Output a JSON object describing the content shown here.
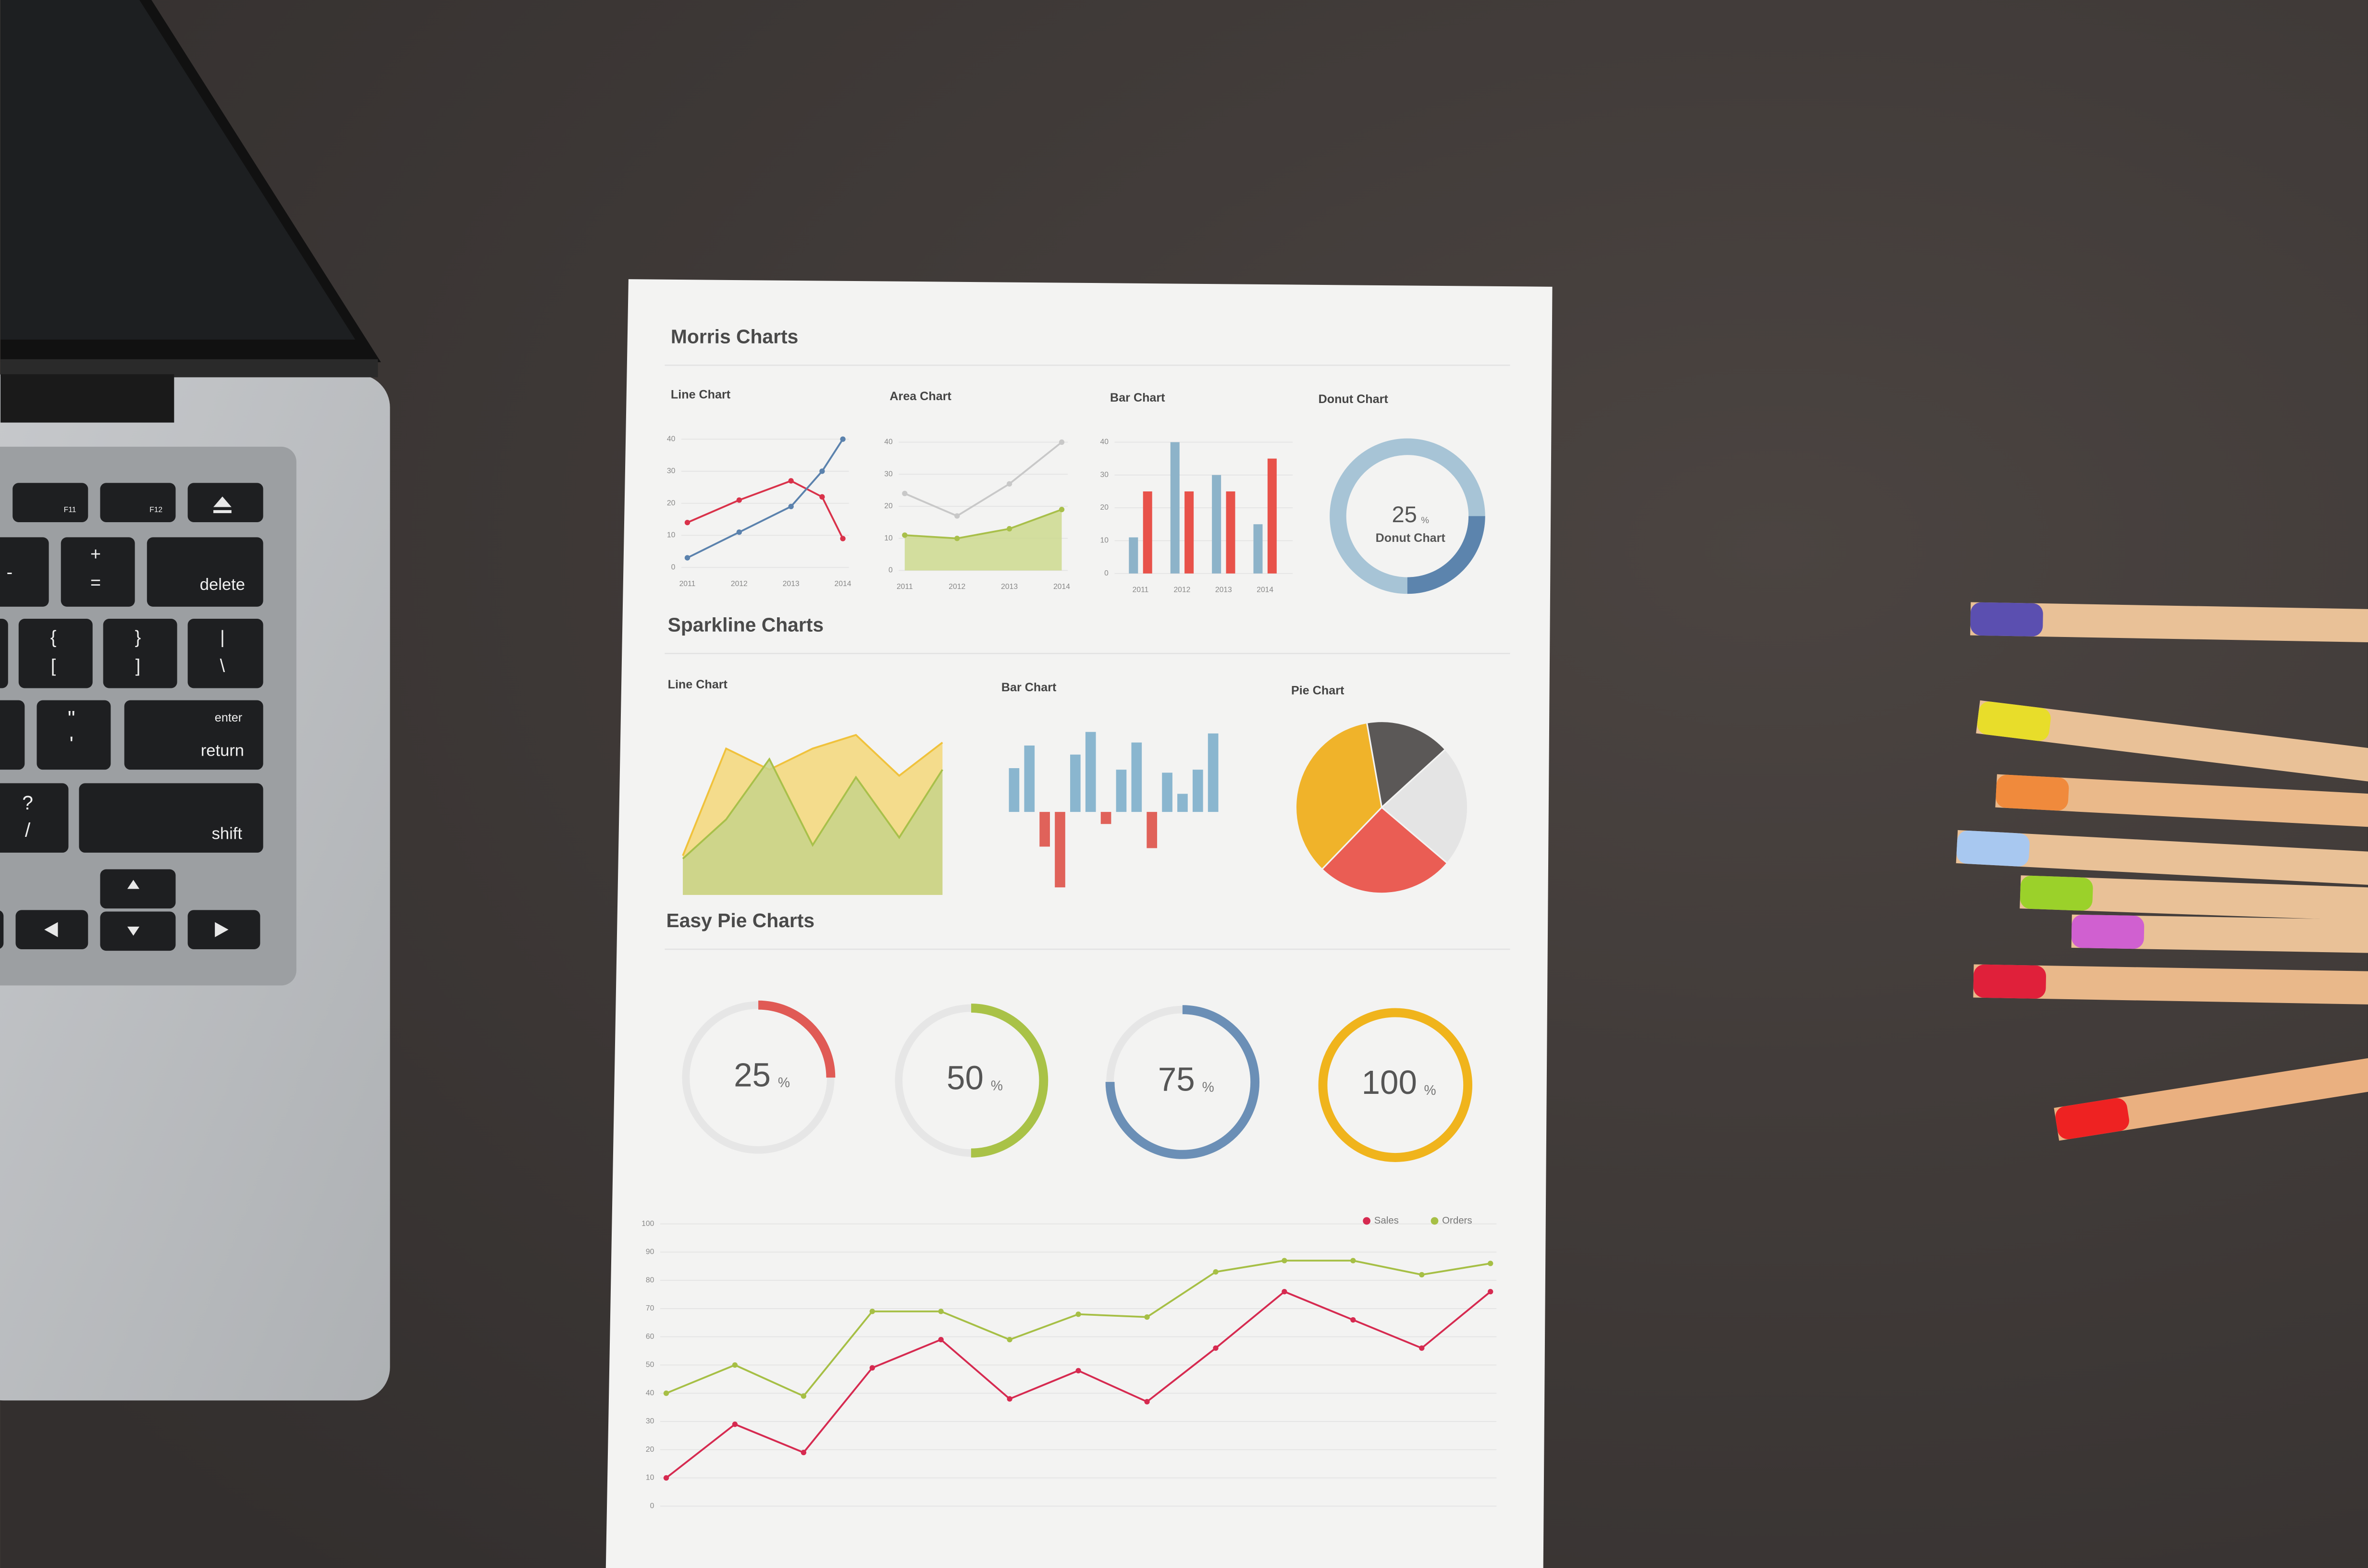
{
  "laptop": {
    "keys": [
      "F11",
      "F12",
      "-",
      "+",
      "=",
      "delete",
      "{",
      "[",
      "}",
      "]",
      "|",
      "\\",
      "\"",
      "'",
      "enter",
      "return",
      "?",
      "/",
      "shift"
    ]
  },
  "paper": {
    "sections": [
      "Morris Charts",
      "Sparkline Charts",
      "Easy Pie Charts"
    ]
  },
  "chart_data": [
    {
      "type": "line",
      "title": "Line Chart",
      "x": [
        2011,
        2012,
        2013,
        2013.6,
        2014
      ],
      "xlim": [
        2011,
        2014
      ],
      "xticks": [
        2011,
        2012,
        2013,
        2014
      ],
      "ylim": [
        0,
        40
      ],
      "yticks": [
        0,
        10,
        20,
        30,
        40
      ],
      "grid": true,
      "series": [
        {
          "color": "#d9324a",
          "values": [
            14,
            21,
            27,
            22,
            9
          ]
        },
        {
          "color": "#5b82ad",
          "values": [
            3,
            11,
            19,
            30,
            40
          ]
        }
      ]
    },
    {
      "type": "area",
      "title": "Area Chart",
      "categories": [
        "2011",
        "2012",
        "2013",
        "2014"
      ],
      "ylim": [
        0,
        40
      ],
      "yticks": [
        0,
        10,
        20,
        30,
        40
      ],
      "grid": true,
      "series": [
        {
          "color": "#c8c8c8",
          "values": [
            24,
            17,
            27,
            40
          ]
        },
        {
          "color": "#a8bf4a",
          "fill": "#cdd98f",
          "values": [
            11,
            10,
            13,
            19
          ]
        }
      ]
    },
    {
      "type": "bar",
      "title": "Bar Chart",
      "categories": [
        "2011",
        "2012",
        "2013",
        "2014"
      ],
      "ylim": [
        0,
        40
      ],
      "yticks": [
        0,
        10,
        20,
        30,
        40
      ],
      "grid": true,
      "series": [
        {
          "color": "#8db3c9",
          "values": [
            11,
            40,
            30,
            15
          ]
        },
        {
          "color": "#e8524a",
          "values": [
            25,
            25,
            25,
            35
          ]
        }
      ]
    },
    {
      "type": "donut",
      "title": "Donut Chart",
      "value": 25,
      "unit": "%",
      "label": "Donut Chart",
      "color": "#5c84ad",
      "track_color": "#a7c4d6"
    },
    {
      "type": "area",
      "title": "Line Chart",
      "series": [
        {
          "color": "#f0c23c",
          "fill": "#f3d77a",
          "values": [
            26,
            97,
            83,
            97,
            106,
            79,
            101
          ]
        },
        {
          "color": "#a8c04a",
          "fill": "#c7d48a",
          "values": [
            24,
            50,
            90,
            33,
            78,
            38,
            83
          ]
        }
      ]
    },
    {
      "type": "bar",
      "title": "Bar Chart",
      "values": [
        29,
        44,
        -23,
        -50,
        38,
        53,
        -8,
        28,
        46,
        -24,
        26,
        12,
        28,
        52
      ],
      "color": "#8ab6cf",
      "negative_color": "#e0625a"
    },
    {
      "type": "pie",
      "title": "Pie Chart",
      "values": [
        16,
        23,
        26,
        35
      ],
      "colors": [
        "#5b5857",
        "#e4e4e4",
        "#ea5d54",
        "#f0b32a"
      ]
    },
    {
      "type": "gauge",
      "values": [
        25,
        50,
        75,
        100
      ],
      "unit": "%",
      "colors": [
        "#e05a55",
        "#a9c247",
        "#6b8fb6",
        "#f0b41c"
      ],
      "track_color": "#e6e6e6"
    },
    {
      "type": "line",
      "ylim": [
        0,
        100
      ],
      "yticks": [
        0,
        10,
        20,
        30,
        40,
        50,
        60,
        70,
        80,
        90,
        100
      ],
      "grid": true,
      "legend": "top-right",
      "series": [
        {
          "name": "Sales",
          "color": "#d62a50",
          "values": [
            10,
            29,
            19,
            49,
            59,
            38,
            48,
            37,
            56,
            76,
            66,
            56,
            76
          ]
        },
        {
          "name": "Orders",
          "color": "#a6bf45",
          "values": [
            40,
            50,
            39,
            69,
            69,
            59,
            68,
            67,
            83,
            87,
            87,
            82,
            86
          ]
        }
      ]
    }
  ]
}
